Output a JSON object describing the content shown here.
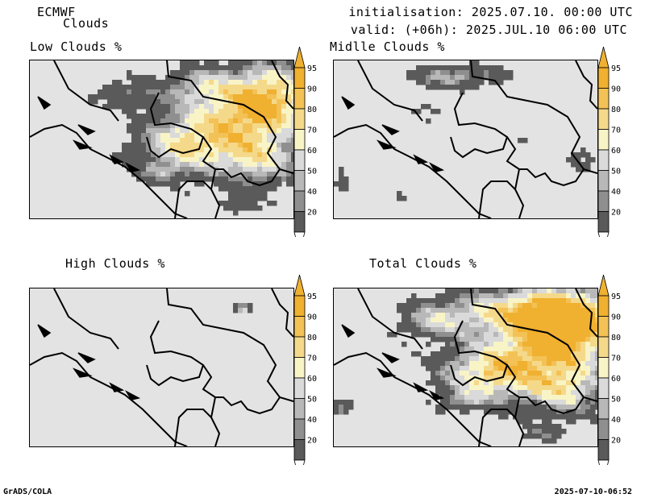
{
  "header": {
    "model": "ECMWF",
    "product": "Clouds",
    "init": "initialisation: 2025.07.10. 00:00 UTC",
    "valid": "valid: (+06h): 2025.JUL.10 06:00 UTC"
  },
  "panels": [
    {
      "title": "Low Clouds %"
    },
    {
      "title": "Midlle Clouds %"
    },
    {
      "title": "High Clouds %"
    },
    {
      "title": "Total Clouds %"
    }
  ],
  "colorbar": {
    "labels": [
      "95",
      "90",
      "80",
      "70",
      "60",
      "50",
      "40",
      "20"
    ],
    "colors": {
      "c95": "#f0b030",
      "c90": "#f3c256",
      "c80": "#f5d98a",
      "c70": "#f8f4c6",
      "c60": "#dadada",
      "c50": "#b8b8b8",
      "c40": "#8f8f8f",
      "c20": "#5a5a5a",
      "low": "#ffffff"
    }
  },
  "footer": {
    "left": "GrADS/COLA",
    "right": "2025-07-10-06:52"
  }
}
